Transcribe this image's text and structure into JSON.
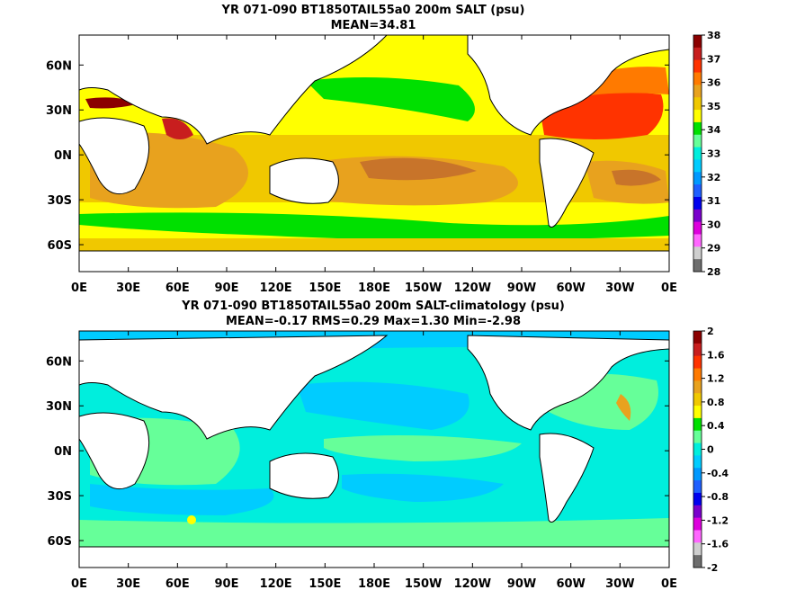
{
  "chart_data": [
    {
      "type": "heatmap",
      "title": "YR 071-090 BT1850TAIL55a0 200m SALT (psu)",
      "subtitle": "MEAN=34.81",
      "x_ticks": [
        "0E",
        "30E",
        "60E",
        "90E",
        "120E",
        "150E",
        "180E",
        "150W",
        "120W",
        "90W",
        "60W",
        "30W",
        "0E"
      ],
      "y_ticks": [
        "60N",
        "30N",
        "0N",
        "30S",
        "60S"
      ],
      "colorbar": {
        "labels": [
          "38",
          "37",
          "36",
          "35",
          "34",
          "33",
          "32",
          "31",
          "30",
          "29",
          "28"
        ],
        "colors": [
          "#8b0000",
          "#c81e1e",
          "#ff3300",
          "#ff7a00",
          "#e8a21e",
          "#f0c800",
          "#ffff00",
          "#00e000",
          "#66ff99",
          "#00eedd",
          "#00ccff",
          "#0099ff",
          "#1f5fff",
          "#0000ee",
          "#7a00cc",
          "#dd00dd",
          "#ff66ff",
          "#cfcfcf",
          "#6e6e6e"
        ]
      }
    },
    {
      "type": "heatmap",
      "title": "YR 071-090 BT1850TAIL55a0 200m SALT-climatology (psu)",
      "subtitle": "MEAN=-0.17   RMS=0.29   Max=1.30   Min=-2.98",
      "x_ticks": [
        "0E",
        "30E",
        "60E",
        "90E",
        "120E",
        "150E",
        "180E",
        "150W",
        "120W",
        "90W",
        "60W",
        "30W",
        "0E"
      ],
      "y_ticks": [
        "60N",
        "30N",
        "0N",
        "30S",
        "60S"
      ],
      "colorbar": {
        "labels": [
          "2",
          "1.6",
          "1.2",
          "0.8",
          "0.4",
          "0",
          "-0.4",
          "-0.8",
          "-1.2",
          "-1.6",
          "-2"
        ],
        "colors": [
          "#8b0000",
          "#c81e1e",
          "#ff3300",
          "#ff7a00",
          "#e8a21e",
          "#f0c800",
          "#ffff00",
          "#00e000",
          "#66ff99",
          "#00eedd",
          "#00ccff",
          "#0099ff",
          "#1f5fff",
          "#0000ee",
          "#7a00cc",
          "#dd00dd",
          "#ff66ff",
          "#cfcfcf",
          "#6e6e6e"
        ]
      }
    }
  ]
}
